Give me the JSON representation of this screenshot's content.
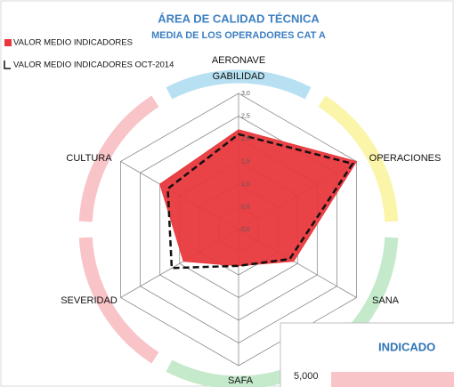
{
  "chart_data": {
    "type": "radar",
    "title": "ÁREA DE CALIDAD TÉCNICA",
    "subtitle": "MEDIA DE LOS OPERADORES CAT A",
    "categories": [
      "AERONAVE\nGABILIDAD",
      "OPERACIONES",
      "SANA",
      "SAFA",
      "SEVERIDAD",
      "CULTURA"
    ],
    "category_colors": [
      "#b7e1f3",
      "#fbf5a9",
      "#c5e9cb",
      "#c5e9cb",
      "#f8c4c7",
      "#f8c4c7"
    ],
    "ylim": [
      0,
      3
    ],
    "yticks": [
      {
        "value": 0,
        "label": "0,0"
      },
      {
        "value": 0.5,
        "label": "0,5"
      },
      {
        "value": 1,
        "label": "1,0"
      },
      {
        "value": 1.5,
        "label": "1,5"
      },
      {
        "value": 2,
        "label": "2,0"
      },
      {
        "value": 2.5,
        "label": "2,5"
      },
      {
        "value": 3,
        "label": "3,0"
      }
    ],
    "grid": true,
    "legend": "top-left",
    "series": [
      {
        "name": "VALOR MEDIO INDICADORES",
        "color": "#e8383d",
        "style": "fill",
        "values": [
          2.2,
          3.0,
          1.4,
          0.8,
          1.4,
          2.0
        ]
      },
      {
        "name": "VALOR MEDIO INDICADORES OCT-2014",
        "color": "#111111",
        "style": "dashed",
        "values": [
          2.1,
          2.9,
          1.3,
          0.8,
          1.7,
          1.8
        ]
      }
    ]
  },
  "overlay": {
    "title": "INDICADO",
    "tick": "5,000"
  }
}
